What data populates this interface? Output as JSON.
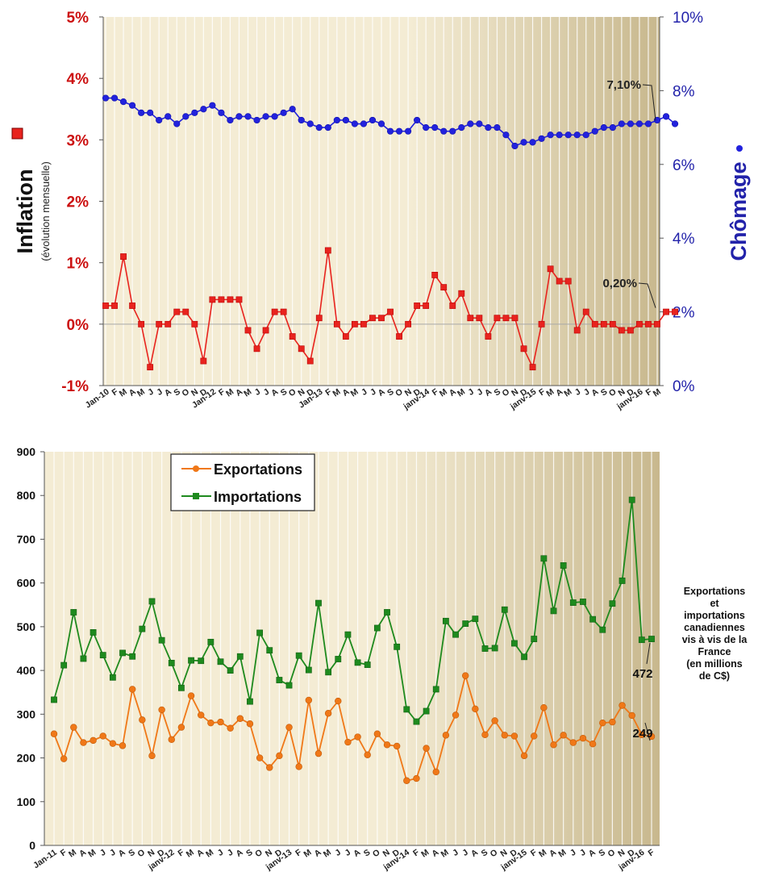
{
  "chart_data": [
    {
      "type": "line",
      "title": "",
      "ylabel": "Inflation",
      "ylabel_sub": "(évolution mensuelle)",
      "y2label": "Chômage",
      "ylim": [
        -1,
        5
      ],
      "y2lim": [
        0,
        10
      ],
      "y_ticks": [
        "-1%",
        "0%",
        "1%",
        "2%",
        "3%",
        "4%",
        "5%"
      ],
      "y2_ticks": [
        "0%",
        "2%",
        "4%",
        "6%",
        "8%",
        "10%"
      ],
      "colors": {
        "inflation": "#e8231e",
        "chomage": "#2222dd",
        "left_axis": "#cc1111",
        "right_axis": "#2222aa",
        "bg_light": "#f4ecd4",
        "bg_dark": "#c8b88e"
      },
      "x_labels": [
        "Jan-10",
        "F",
        "M",
        "A",
        "M",
        "J",
        "J",
        "A",
        "S",
        "O",
        "N",
        "D",
        "Jan-12",
        "F",
        "M",
        "A",
        "M",
        "J",
        "J",
        "A",
        "S",
        "O",
        "N",
        "D",
        "Jan-13",
        "F",
        "M",
        "A",
        "M",
        "J",
        "J",
        "A",
        "S",
        "O",
        "N",
        "D",
        "janv-14",
        "F",
        "M",
        "A",
        "M",
        "J",
        "J",
        "A",
        "S",
        "O",
        "N",
        "D",
        "janv-15",
        "F",
        "M",
        "A",
        "M",
        "J",
        "J",
        "A",
        "S",
        "O",
        "N",
        "D",
        "janv-16",
        "F",
        "M"
      ],
      "series": [
        {
          "name": "Inflation",
          "axis": "left",
          "marker": "square",
          "values": [
            0.3,
            0.3,
            1.1,
            0.3,
            0.0,
            -0.7,
            0.0,
            0.0,
            0.2,
            0.2,
            0.0,
            -0.6,
            0.4,
            0.4,
            0.4,
            0.4,
            -0.1,
            -0.4,
            -0.1,
            0.2,
            0.2,
            -0.2,
            -0.4,
            -0.6,
            0.1,
            1.2,
            0.0,
            -0.2,
            0.0,
            0.0,
            0.1,
            0.1,
            0.2,
            -0.2,
            0.0,
            0.3,
            0.3,
            0.8,
            0.6,
            0.3,
            0.5,
            0.1,
            0.1,
            -0.2,
            0.1,
            0.1,
            0.1,
            -0.4,
            -0.7,
            0.0,
            0.9,
            0.7,
            0.7,
            -0.1,
            0.2,
            0.0,
            0.0,
            0.0,
            -0.1,
            -0.1,
            0.0,
            0.0,
            0.0,
            0.2,
            0.2
          ]
        },
        {
          "name": "Chômage",
          "axis": "right",
          "marker": "circle",
          "values": [
            7.8,
            7.8,
            7.7,
            7.6,
            7.4,
            7.4,
            7.2,
            7.3,
            7.1,
            7.3,
            7.4,
            7.5,
            7.6,
            7.4,
            7.2,
            7.3,
            7.3,
            7.2,
            7.3,
            7.3,
            7.4,
            7.5,
            7.2,
            7.1,
            7.0,
            7.0,
            7.2,
            7.2,
            7.1,
            7.1,
            7.2,
            7.1,
            6.9,
            6.9,
            6.9,
            7.2,
            7.0,
            7.0,
            6.9,
            6.9,
            7.0,
            7.1,
            7.1,
            7.0,
            7.0,
            6.8,
            6.5,
            6.6,
            6.6,
            6.7,
            6.8,
            6.8,
            6.8,
            6.8,
            6.8,
            6.9,
            7.0,
            7.0,
            7.1,
            7.1,
            7.1,
            7.1,
            7.2,
            7.3,
            7.1
          ]
        }
      ],
      "annotations": [
        {
          "text": "7,10%",
          "series": "Chômage"
        },
        {
          "text": "0,20%",
          "series": "Inflation"
        }
      ]
    },
    {
      "type": "line",
      "title": "",
      "ylim": [
        0,
        900
      ],
      "y_ticks": [
        "0",
        "100",
        "200",
        "300",
        "400",
        "500",
        "600",
        "700",
        "800",
        "900"
      ],
      "colors": {
        "exportations": "#f07818",
        "importations": "#1e8a1e"
      },
      "x_labels": [
        "Jan-11",
        "F",
        "M",
        "A",
        "M",
        "J",
        "J",
        "A",
        "S",
        "O",
        "N",
        "D",
        "janv-12",
        "F",
        "M",
        "A",
        "M",
        "J",
        "J",
        "A",
        "S",
        "O",
        "N",
        "D",
        "janv-13",
        "F",
        "M",
        "A",
        "M",
        "J",
        "J",
        "A",
        "S",
        "O",
        "N",
        "D",
        "janv-14",
        "F",
        "M",
        "A",
        "M",
        "J",
        "J",
        "A",
        "S",
        "O",
        "N",
        "D",
        "janv-15",
        "F",
        "M",
        "A",
        "M",
        "J",
        "J",
        "A",
        "S",
        "O",
        "N",
        "D",
        "janv-16",
        "F"
      ],
      "series": [
        {
          "name": "Exportations",
          "marker": "circle",
          "values": [
            255,
            198,
            270,
            235,
            240,
            250,
            233,
            228,
            357,
            287,
            205,
            310,
            242,
            270,
            342,
            298,
            280,
            282,
            268,
            290,
            278,
            200,
            178,
            205,
            270,
            180,
            332,
            210,
            302,
            330,
            236,
            248,
            207,
            255,
            230,
            227,
            148,
            153,
            222,
            168,
            252,
            298,
            388,
            312,
            253,
            285,
            252,
            250,
            205,
            250,
            315,
            230,
            252,
            235,
            245,
            232,
            280,
            282,
            320,
            297,
            253,
            249
          ]
        },
        {
          "name": "Importations",
          "marker": "square",
          "values": [
            333,
            412,
            533,
            427,
            487,
            435,
            384,
            440,
            432,
            495,
            558,
            469,
            417,
            360,
            423,
            422,
            465,
            420,
            400,
            432,
            329,
            486,
            446,
            378,
            366,
            434,
            401,
            554,
            396,
            426,
            482,
            418,
            413,
            497,
            533,
            454,
            311,
            283,
            307,
            357,
            513,
            482,
            507,
            518,
            450,
            451,
            539,
            462,
            431,
            472,
            656,
            536,
            640,
            555,
            557,
            517,
            493,
            553,
            605,
            790,
            470,
            472
          ]
        }
      ],
      "legend_placement": "top-left",
      "annotations": [
        {
          "text": "472",
          "series": "Importations"
        },
        {
          "text": "249",
          "series": "Exportations"
        }
      ],
      "side_note": "Exportations\net\nimportations\ncanadiennes\nvis à vis de la\nFrance\n(en millions\nde C$)"
    }
  ]
}
